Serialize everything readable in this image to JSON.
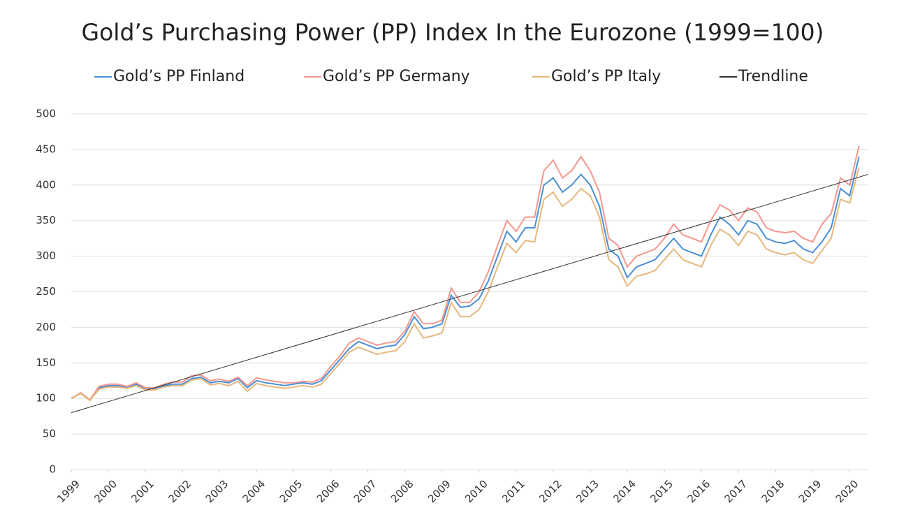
{
  "chart_data": {
    "type": "line",
    "title": "Gold’s Purchasing Power (PP) Index In the Eurozone (1999=100)",
    "x": [
      1999,
      1999.25,
      1999.5,
      1999.75,
      2000,
      2000.25,
      2000.5,
      2000.75,
      2001,
      2001.25,
      2001.5,
      2001.75,
      2002,
      2002.25,
      2002.5,
      2002.75,
      2003,
      2003.25,
      2003.5,
      2003.75,
      2004,
      2004.25,
      2004.5,
      2004.75,
      2005,
      2005.25,
      2005.5,
      2005.75,
      2006,
      2006.25,
      2006.5,
      2006.75,
      2007,
      2007.25,
      2007.5,
      2007.75,
      2008,
      2008.25,
      2008.5,
      2008.75,
      2009,
      2009.25,
      2009.5,
      2009.75,
      2010,
      2010.25,
      2010.5,
      2010.75,
      2011,
      2011.25,
      2011.5,
      2011.75,
      2012,
      2012.25,
      2012.5,
      2012.75,
      2013,
      2013.25,
      2013.5,
      2013.75,
      2014,
      2014.25,
      2014.5,
      2014.75,
      2015,
      2015.25,
      2015.5,
      2015.75,
      2016,
      2016.25,
      2016.5,
      2016.75,
      2017,
      2017.25,
      2017.5,
      2017.75,
      2018,
      2018.25,
      2018.5,
      2018.75,
      2019,
      2019.25,
      2019.5,
      2019.75,
      2020,
      2020.25
    ],
    "series": [
      {
        "name": "Gold’s PP Finland",
        "color": "#4a8fd6",
        "values": [
          100,
          108,
          98,
          115,
          118,
          118,
          116,
          120,
          114,
          114,
          118,
          120,
          120,
          128,
          130,
          122,
          124,
          122,
          128,
          115,
          125,
          122,
          120,
          118,
          120,
          122,
          120,
          125,
          140,
          155,
          170,
          180,
          175,
          170,
          173,
          175,
          190,
          215,
          198,
          200,
          205,
          245,
          228,
          230,
          240,
          265,
          300,
          335,
          320,
          340,
          340,
          400,
          410,
          390,
          400,
          415,
          400,
          370,
          310,
          300,
          270,
          285,
          290,
          295,
          310,
          325,
          310,
          305,
          300,
          330,
          355,
          345,
          330,
          350,
          345,
          325,
          320,
          318,
          322,
          310,
          305,
          320,
          340,
          395,
          385,
          440
        ]
      },
      {
        "name": "Gold’s PP Germany",
        "color": "#f4978e",
        "values": [
          100,
          108,
          98,
          117,
          120,
          120,
          117,
          122,
          115,
          115,
          120,
          123,
          123,
          132,
          133,
          125,
          127,
          124,
          130,
          118,
          129,
          126,
          124,
          122,
          122,
          124,
          123,
          128,
          145,
          160,
          178,
          185,
          180,
          175,
          178,
          180,
          195,
          222,
          205,
          205,
          210,
          255,
          235,
          235,
          250,
          278,
          315,
          350,
          335,
          355,
          355,
          420,
          435,
          410,
          420,
          440,
          420,
          390,
          325,
          315,
          285,
          300,
          305,
          310,
          325,
          345,
          330,
          325,
          320,
          350,
          372,
          365,
          350,
          368,
          362,
          340,
          335,
          333,
          335,
          325,
          320,
          345,
          360,
          410,
          400,
          455
        ]
      },
      {
        "name": "Gold’s PP Italy",
        "color": "#e6b77c",
        "values": [
          100,
          107,
          97,
          113,
          116,
          116,
          114,
          118,
          112,
          112,
          116,
          118,
          118,
          126,
          128,
          119,
          121,
          118,
          124,
          110,
          121,
          118,
          116,
          114,
          116,
          118,
          116,
          120,
          135,
          150,
          165,
          172,
          167,
          162,
          165,
          167,
          180,
          205,
          185,
          188,
          192,
          235,
          215,
          215,
          225,
          250,
          285,
          318,
          305,
          322,
          320,
          380,
          390,
          370,
          380,
          395,
          385,
          355,
          295,
          285,
          258,
          272,
          275,
          280,
          295,
          310,
          295,
          290,
          285,
          315,
          338,
          330,
          315,
          335,
          330,
          310,
          305,
          302,
          305,
          295,
          290,
          308,
          325,
          380,
          375,
          425
        ]
      },
      {
        "name": "Trendline",
        "color": "#333333",
        "x": [
          1999,
          2020.5
        ],
        "values": [
          80,
          415
        ]
      }
    ],
    "xlim": [
      1999,
      2020.5
    ],
    "xticks": [
      1999,
      2000,
      2001,
      2002,
      2003,
      2004,
      2005,
      2006,
      2007,
      2008,
      2009,
      2010,
      2011,
      2012,
      2013,
      2014,
      2015,
      2016,
      2017,
      2018,
      2019,
      2020
    ],
    "ylim": [
      0,
      500
    ],
    "yticks": [
      0,
      50,
      100,
      150,
      200,
      250,
      300,
      350,
      400,
      450,
      500
    ],
    "grid": true
  }
}
